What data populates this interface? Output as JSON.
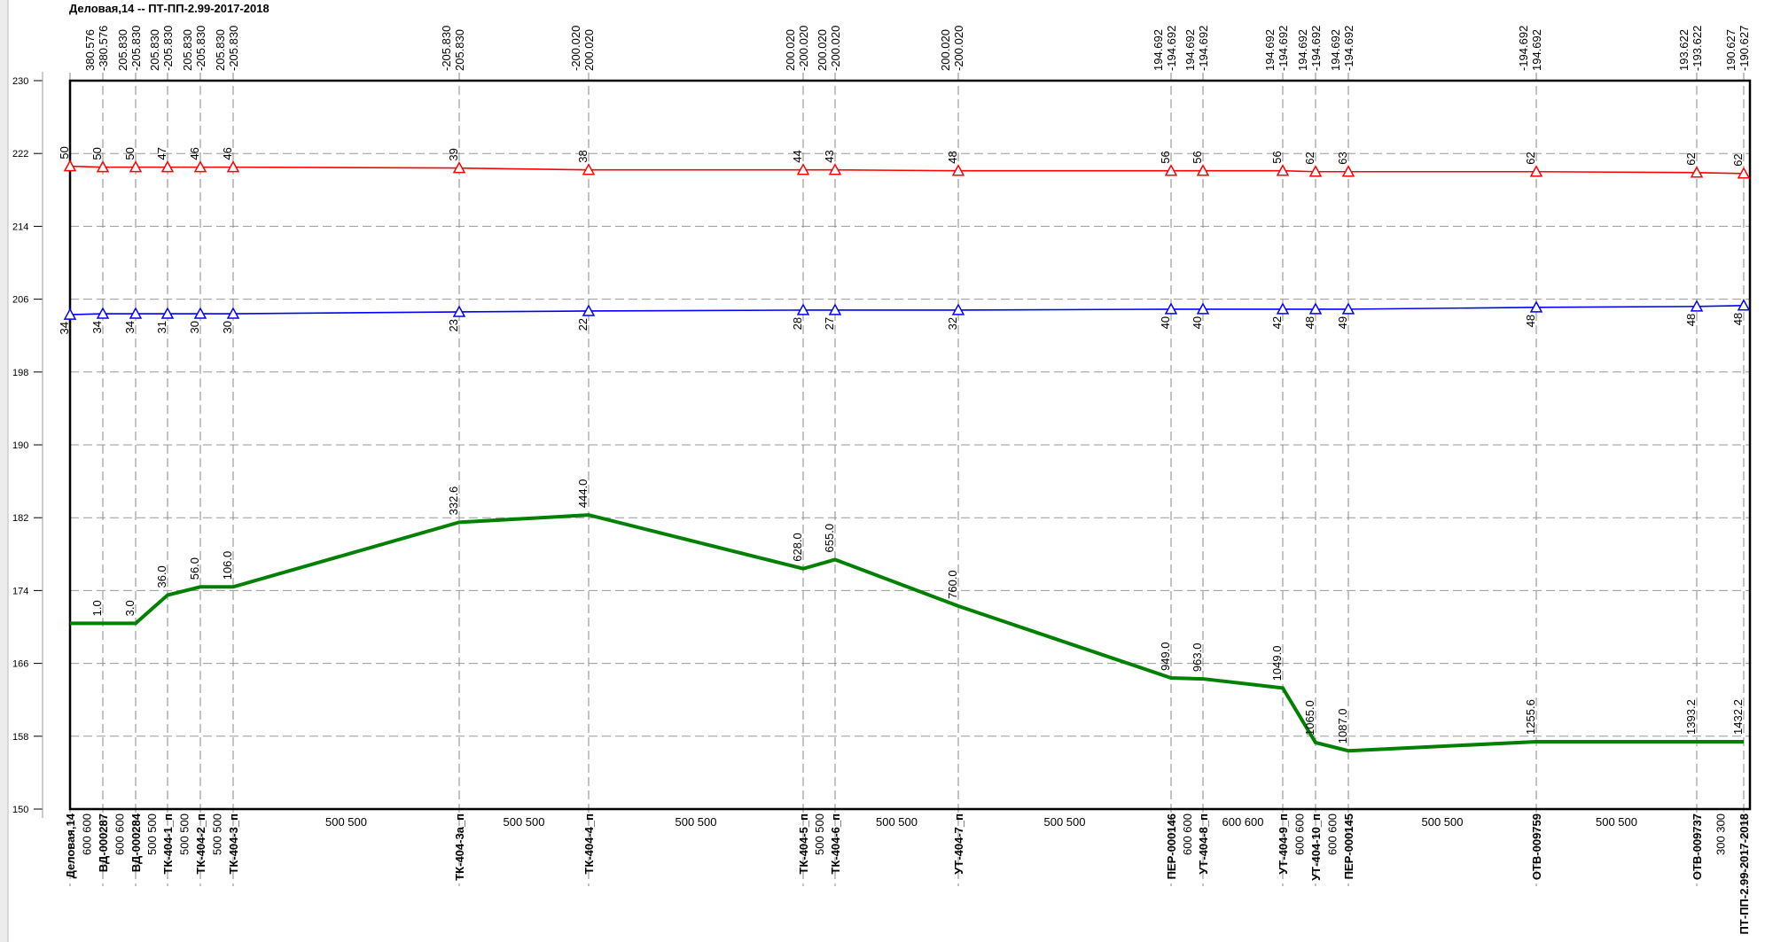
{
  "chart_data": {
    "type": "line",
    "title": "Деловая,14 -- ПТ-ПП-2.99-2017-2018",
    "categories": [
      "Деловая,14",
      "ВД-000287",
      "ВД-000284",
      "ТК-404-1_п",
      "ТК-404-2_п",
      "ТК-404-3_п",
      "ТК-404-3а_п",
      "ТК-404-4_п",
      "ТК-404-5_п",
      "ТК-404-6_п",
      "УТ-404-7_п",
      "ПЕР-000146",
      "УТ-404-8_п",
      "УТ-404-9_п",
      "УТ-404-10_п",
      "ПЕР-000145",
      "ОТВ-009759",
      "ОТВ-009737",
      "ПТ-ПП-2.99-2017-2018"
    ],
    "series": [
      {
        "color": "#ff0000",
        "marker": "triangle",
        "label_side": "above",
        "values": [
          220.6,
          220.5,
          220.5,
          220.5,
          220.5,
          220.5,
          220.4,
          220.2,
          220.2,
          220.2,
          220.1,
          220.1,
          220.1,
          220.1,
          220.0,
          220.0,
          220.0,
          219.9,
          219.8
        ],
        "point_labels": [
          "50",
          "50",
          "50",
          "47",
          "46",
          "46",
          "39",
          "38",
          "44",
          "43",
          "48",
          "56",
          "56",
          "56",
          "62",
          "63",
          "62",
          "62",
          "62"
        ]
      },
      {
        "color": "#0000ff",
        "marker": "triangle",
        "label_side": "below",
        "values": [
          204.3,
          204.4,
          204.4,
          204.4,
          204.4,
          204.4,
          204.6,
          204.7,
          204.8,
          204.8,
          204.8,
          204.9,
          204.9,
          204.9,
          204.9,
          204.9,
          205.1,
          205.2,
          205.3
        ],
        "point_labels": [
          "34",
          "34",
          "34",
          "31",
          "30",
          "30",
          "23",
          "22",
          "28",
          "27",
          "32",
          "40",
          "40",
          "42",
          "48",
          "49",
          "48",
          "48",
          "48"
        ]
      },
      {
        "color": "#008000",
        "marker": "none",
        "label_side": "above",
        "values": [
          170.4,
          170.4,
          170.4,
          173.5,
          174.4,
          174.4,
          181.5,
          182.3,
          176.4,
          177.4,
          172.3,
          164.4,
          164.3,
          163.3,
          157.3,
          156.4,
          157.4,
          157.4,
          157.4
        ],
        "point_labels": [
          null,
          "1.0",
          "3.0",
          "36.0",
          "56.0",
          "106.0",
          "332.6",
          "444.0",
          "628.0",
          "655.0",
          "760.0",
          "949.0",
          "963.0",
          "1049.0",
          "1065.0",
          "1087.0",
          "1255.6",
          "1393.2",
          "1432.2"
        ]
      }
    ],
    "flow_in": [
      null,
      "380.576",
      "205.830",
      "205.830",
      "205.830",
      "205.830",
      "-205.830",
      "-200.020",
      "200.020",
      "200.020",
      "200.020",
      "194.692",
      "194.692",
      "194.692",
      "194.692",
      "194.692",
      "-194.692",
      "193.622",
      "190.627"
    ],
    "flow_out": [
      null,
      "-380.576",
      "-205.830",
      "-205.830",
      "-205.830",
      "-205.830",
      "205.830",
      "200.020",
      "-200.020",
      "-200.020",
      "-200.020",
      "-194.692",
      "-194.692",
      "-194.692",
      "-194.692",
      "-194.692",
      "194.692",
      "-193.622",
      "-190.627"
    ],
    "segments": [
      "600 600",
      "600 600",
      "500 500",
      "500 500",
      "500 500",
      "500 500",
      "500 500",
      "500 500",
      "500 500",
      "500 500",
      "500 500",
      "600 600",
      "600 600",
      "600 600",
      "600 600",
      "500 500",
      "500 500",
      "300 300"
    ],
    "ylim": [
      150,
      230
    ],
    "yticks": [
      150,
      158,
      166,
      174,
      182,
      190,
      198,
      206,
      214,
      222,
      230
    ],
    "grid": true
  }
}
